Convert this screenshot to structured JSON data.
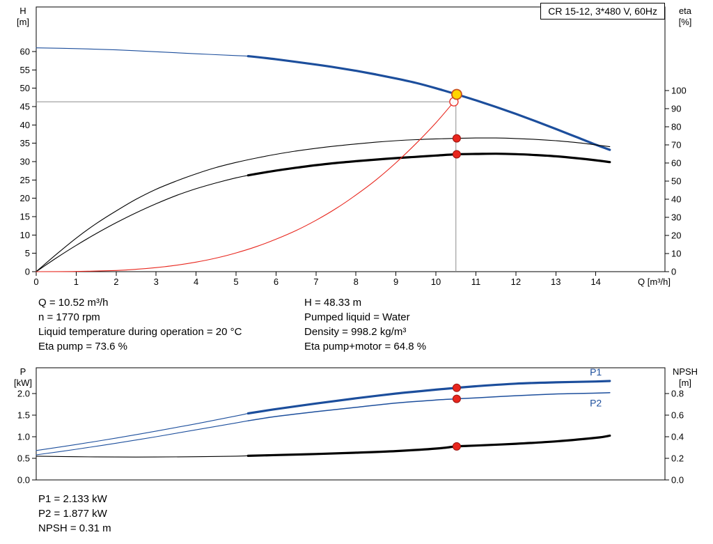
{
  "title_box": {
    "text": "CR 15-12, 3*480 V, 60Hz"
  },
  "info_top": {
    "left": [
      "Q = 10.52 m³/h",
      "n = 1770 rpm",
      "Liquid temperature during operation = 20 °C",
      "Eta pump = 73.6 %"
    ],
    "right": [
      "H = 48.33 m",
      "Pumped liquid = Water",
      "Density = 998.2 kg/m³",
      "Eta pump+motor = 64.8 %"
    ]
  },
  "info_bottom": [
    "P1 = 2.133 kW",
    "P2 = 1.877 kW",
    "NPSH = 0.31 m"
  ],
  "colors": {
    "blue": "#1c4e9c",
    "black": "#000000",
    "red": "#e8261d",
    "gray": "#8c8c8c",
    "yellow": "#ffd500",
    "yellow_edge": "#c8501e"
  },
  "chart_data": [
    {
      "id": "hq-eta",
      "type": "line",
      "x_axis": {
        "min": 0,
        "max": 15.73,
        "label": "Q [m³/h]",
        "ticks": [
          [
            0,
            "0"
          ],
          [
            1,
            "1"
          ],
          [
            2,
            "2"
          ],
          [
            3,
            "3"
          ],
          [
            4,
            "4"
          ],
          [
            5,
            "5"
          ],
          [
            6,
            "6"
          ],
          [
            7,
            "7"
          ],
          [
            8,
            "8"
          ],
          [
            9,
            "9"
          ],
          [
            10,
            "10"
          ],
          [
            11,
            "11"
          ],
          [
            12,
            "12"
          ],
          [
            13,
            "13"
          ],
          [
            14,
            "14"
          ]
        ]
      },
      "y_left": {
        "title": [
          "H",
          "[m]"
        ],
        "min": 0,
        "max": 72.15,
        "ticks": [
          [
            0,
            "0"
          ],
          [
            5,
            "5"
          ],
          [
            10,
            "10"
          ],
          [
            15,
            "15"
          ],
          [
            20,
            "20"
          ],
          [
            25,
            "25"
          ],
          [
            30,
            "30"
          ],
          [
            35,
            "35"
          ],
          [
            40,
            "40"
          ],
          [
            45,
            "45"
          ],
          [
            50,
            "50"
          ],
          [
            55,
            "55"
          ],
          [
            60,
            "60"
          ]
        ]
      },
      "y_right": {
        "title": [
          "eta",
          "[%]"
        ],
        "min": 0,
        "max": 146.15,
        "ticks": [
          [
            0,
            "0"
          ],
          [
            10,
            "10"
          ],
          [
            20,
            "20"
          ],
          [
            30,
            "30"
          ],
          [
            40,
            "40"
          ],
          [
            50,
            "50"
          ],
          [
            60,
            "60"
          ],
          [
            70,
            "70"
          ],
          [
            80,
            "80"
          ],
          [
            90,
            "90"
          ],
          [
            100,
            "100"
          ]
        ]
      },
      "series": [
        {
          "name": "head-curve-thin",
          "axis": "left",
          "color": "blue",
          "width": 1.1,
          "points": [
            [
              0,
              61.0
            ],
            [
              1,
              60.8
            ],
            [
              2,
              60.45
            ],
            [
              3,
              59.95
            ],
            [
              4,
              59.4
            ],
            [
              5,
              58.9
            ],
            [
              5.3,
              58.75
            ]
          ]
        },
        {
          "name": "head-curve-thick",
          "axis": "left",
          "color": "blue",
          "width": 3.2,
          "points": [
            [
              5.3,
              58.75
            ],
            [
              6,
              57.9
            ],
            [
              7,
              56.45
            ],
            [
              7.5,
              55.65
            ],
            [
              8,
              54.75
            ],
            [
              8.5,
              53.75
            ],
            [
              9,
              52.65
            ],
            [
              9.5,
              51.45
            ],
            [
              10,
              50.0
            ],
            [
              10.52,
              48.33
            ],
            [
              11,
              46.7
            ],
            [
              11.5,
              44.9
            ],
            [
              12,
              43.0
            ],
            [
              12.5,
              41.0
            ],
            [
              13,
              38.9
            ],
            [
              13.5,
              36.75
            ],
            [
              14,
              34.6
            ],
            [
              14.35,
              33.2
            ]
          ]
        },
        {
          "name": "eta-pump-curve",
          "axis": "right",
          "color": "black",
          "width": 1.1,
          "points": [
            [
              0,
              0
            ],
            [
              0.5,
              9.5
            ],
            [
              1,
              18.5
            ],
            [
              1.5,
              26.5
            ],
            [
              2,
              33.5
            ],
            [
              2.5,
              40.0
            ],
            [
              3,
              45.5
            ],
            [
              3.5,
              50.0
            ],
            [
              4,
              54.0
            ],
            [
              4.5,
              57.5
            ],
            [
              5,
              60.3
            ],
            [
              5.5,
              62.7
            ],
            [
              6,
              64.8
            ],
            [
              6.5,
              66.6
            ],
            [
              7,
              68.1
            ],
            [
              7.5,
              69.4
            ],
            [
              8,
              70.5
            ],
            [
              8.5,
              71.5
            ],
            [
              9,
              72.3
            ],
            [
              9.5,
              72.9
            ],
            [
              10,
              73.3
            ],
            [
              10.52,
              73.6
            ],
            [
              11,
              73.8
            ],
            [
              11.5,
              73.8
            ],
            [
              12,
              73.5
            ],
            [
              12.5,
              73.0
            ],
            [
              13,
              72.3
            ],
            [
              13.5,
              71.3
            ],
            [
              14,
              70.0
            ],
            [
              14.35,
              69.0
            ]
          ]
        },
        {
          "name": "eta-pump-motor-thin",
          "axis": "right",
          "color": "black",
          "width": 1.1,
          "points": [
            [
              0,
              0
            ],
            [
              0.5,
              7.5
            ],
            [
              1,
              14.5
            ],
            [
              1.5,
              21.0
            ],
            [
              2,
              27.0
            ],
            [
              2.5,
              32.5
            ],
            [
              3,
              37.5
            ],
            [
              3.5,
              42.0
            ],
            [
              4,
              45.8
            ],
            [
              4.5,
              49.0
            ],
            [
              5,
              51.8
            ],
            [
              5.3,
              53.2
            ]
          ]
        },
        {
          "name": "eta-pump-motor-thick",
          "axis": "right",
          "color": "black",
          "width": 3.2,
          "points": [
            [
              5.3,
              53.2
            ],
            [
              6,
              55.8
            ],
            [
              6.5,
              57.4
            ],
            [
              7,
              58.8
            ],
            [
              7.5,
              60.0
            ],
            [
              8,
              61.0
            ],
            [
              8.5,
              61.9
            ],
            [
              9,
              62.7
            ],
            [
              9.5,
              63.4
            ],
            [
              10,
              64.1
            ],
            [
              10.52,
              64.8
            ],
            [
              11,
              65.0
            ],
            [
              11.5,
              65.1
            ],
            [
              12,
              64.9
            ],
            [
              12.5,
              64.4
            ],
            [
              13,
              63.7
            ],
            [
              13.5,
              62.7
            ],
            [
              14,
              61.5
            ],
            [
              14.35,
              60.5
            ]
          ]
        },
        {
          "name": "system-curve",
          "axis": "left",
          "color": "red",
          "width": 1.1,
          "points": [
            [
              0,
              0
            ],
            [
              1,
              0.05
            ],
            [
              2,
              0.33
            ],
            [
              2.5,
              0.64
            ],
            [
              3,
              1.1
            ],
            [
              3.5,
              1.75
            ],
            [
              4,
              2.6
            ],
            [
              4.5,
              3.7
            ],
            [
              5,
              5.1
            ],
            [
              5.5,
              6.8
            ],
            [
              6,
              8.85
            ],
            [
              6.5,
              11.2
            ],
            [
              7,
              14.0
            ],
            [
              7.5,
              17.2
            ],
            [
              8,
              20.9
            ],
            [
              8.5,
              25.0
            ],
            [
              9,
              29.7
            ],
            [
              9.5,
              34.9
            ],
            [
              10,
              40.6
            ],
            [
              10.45,
              46.3
            ]
          ]
        }
      ],
      "crosshair": {
        "vline": {
          "x": 10.5,
          "y_from": 0,
          "y_to": 48.33
        },
        "hline": {
          "y": 46.3,
          "x_from": 0,
          "x_to": 10.45
        }
      },
      "markers": [
        {
          "kind": "dot",
          "axis": "right",
          "x": 10.52,
          "y": 73.6
        },
        {
          "kind": "dot",
          "axis": "right",
          "x": 10.52,
          "y": 64.8
        },
        {
          "kind": "open",
          "axis": "left",
          "x": 10.45,
          "y": 46.3
        },
        {
          "kind": "duty",
          "axis": "left",
          "x": 10.52,
          "y": 48.33
        }
      ],
      "labels": []
    },
    {
      "id": "power-npsh",
      "type": "line",
      "x_axis": {
        "min": 0,
        "max": 15.73,
        "label": "",
        "ticks": []
      },
      "y_left": {
        "title": [
          "P",
          "[kW]"
        ],
        "min": 0,
        "max": 2.597,
        "ticks": [
          [
            0,
            "0.0"
          ],
          [
            0.5,
            "0.5"
          ],
          [
            1,
            "1.0"
          ],
          [
            1.5,
            "1.5"
          ],
          [
            2,
            "2.0"
          ]
        ]
      },
      "y_right": {
        "title": [
          "NPSH",
          "[m]"
        ],
        "min": 0,
        "max": 1.0387,
        "ticks": [
          [
            0,
            "0.0"
          ],
          [
            0.2,
            "0.2"
          ],
          [
            0.4,
            "0.4"
          ],
          [
            0.6,
            "0.6"
          ],
          [
            0.8,
            "0.8"
          ]
        ]
      },
      "series": [
        {
          "name": "p1-curve-thin",
          "axis": "left",
          "color": "blue",
          "width": 1.1,
          "points": [
            [
              0,
              0.68
            ],
            [
              1,
              0.82
            ],
            [
              2,
              0.97
            ],
            [
              3,
              1.13
            ],
            [
              4,
              1.3
            ],
            [
              5,
              1.48
            ],
            [
              5.3,
              1.54
            ]
          ]
        },
        {
          "name": "p1-curve-thick",
          "axis": "left",
          "color": "blue",
          "width": 3.2,
          "points": [
            [
              5.3,
              1.54
            ],
            [
              6,
              1.64
            ],
            [
              7,
              1.77
            ],
            [
              8,
              1.89
            ],
            [
              9,
              2.0
            ],
            [
              10,
              2.09
            ],
            [
              10.52,
              2.133
            ],
            [
              11,
              2.17
            ],
            [
              12,
              2.23
            ],
            [
              13,
              2.26
            ],
            [
              14,
              2.28
            ],
            [
              14.35,
              2.29
            ]
          ]
        },
        {
          "name": "p2-curve-thin",
          "axis": "left",
          "color": "blue",
          "width": 1.1,
          "points": [
            [
              0,
              0.58
            ],
            [
              1,
              0.71
            ],
            [
              2,
              0.85
            ],
            [
              3,
              1.0
            ],
            [
              4,
              1.16
            ],
            [
              5,
              1.32
            ],
            [
              5.3,
              1.37
            ]
          ]
        },
        {
          "name": "p2-curve-main",
          "axis": "left",
          "color": "blue",
          "width": 1.5,
          "points": [
            [
              5.3,
              1.37
            ],
            [
              6,
              1.47
            ],
            [
              7,
              1.58
            ],
            [
              8,
              1.68
            ],
            [
              9,
              1.78
            ],
            [
              10,
              1.85
            ],
            [
              10.52,
              1.877
            ],
            [
              11,
              1.9
            ],
            [
              12,
              1.95
            ],
            [
              13,
              1.99
            ],
            [
              14,
              2.01
            ],
            [
              14.35,
              2.02
            ]
          ]
        },
        {
          "name": "npsh-curve-thin",
          "axis": "right",
          "color": "black",
          "width": 1.1,
          "points": [
            [
              0,
              0.22
            ],
            [
              1,
              0.215
            ],
            [
              2,
              0.212
            ],
            [
              3,
              0.212
            ],
            [
              4,
              0.215
            ],
            [
              5,
              0.22
            ],
            [
              5.3,
              0.223
            ]
          ]
        },
        {
          "name": "npsh-curve-thick",
          "axis": "right",
          "color": "black",
          "width": 3.2,
          "points": [
            [
              5.3,
              0.223
            ],
            [
              6,
              0.23
            ],
            [
              7,
              0.24
            ],
            [
              8,
              0.252
            ],
            [
              9,
              0.267
            ],
            [
              10,
              0.29
            ],
            [
              10.52,
              0.31
            ],
            [
              11,
              0.318
            ],
            [
              12,
              0.335
            ],
            [
              13,
              0.357
            ],
            [
              14,
              0.39
            ],
            [
              14.35,
              0.41
            ]
          ]
        }
      ],
      "crosshair": null,
      "markers": [
        {
          "kind": "dot",
          "axis": "left",
          "x": 10.52,
          "y": 2.133
        },
        {
          "kind": "dot",
          "axis": "left",
          "x": 10.52,
          "y": 1.877
        },
        {
          "kind": "dot",
          "axis": "right",
          "x": 10.52,
          "y": 0.31
        }
      ],
      "labels": [
        {
          "text": "P1",
          "x": 13.85,
          "y": 2.42,
          "axis": "left",
          "color": "blue"
        },
        {
          "text": "P2",
          "x": 13.85,
          "y": 1.7,
          "axis": "left",
          "color": "blue"
        }
      ]
    }
  ]
}
